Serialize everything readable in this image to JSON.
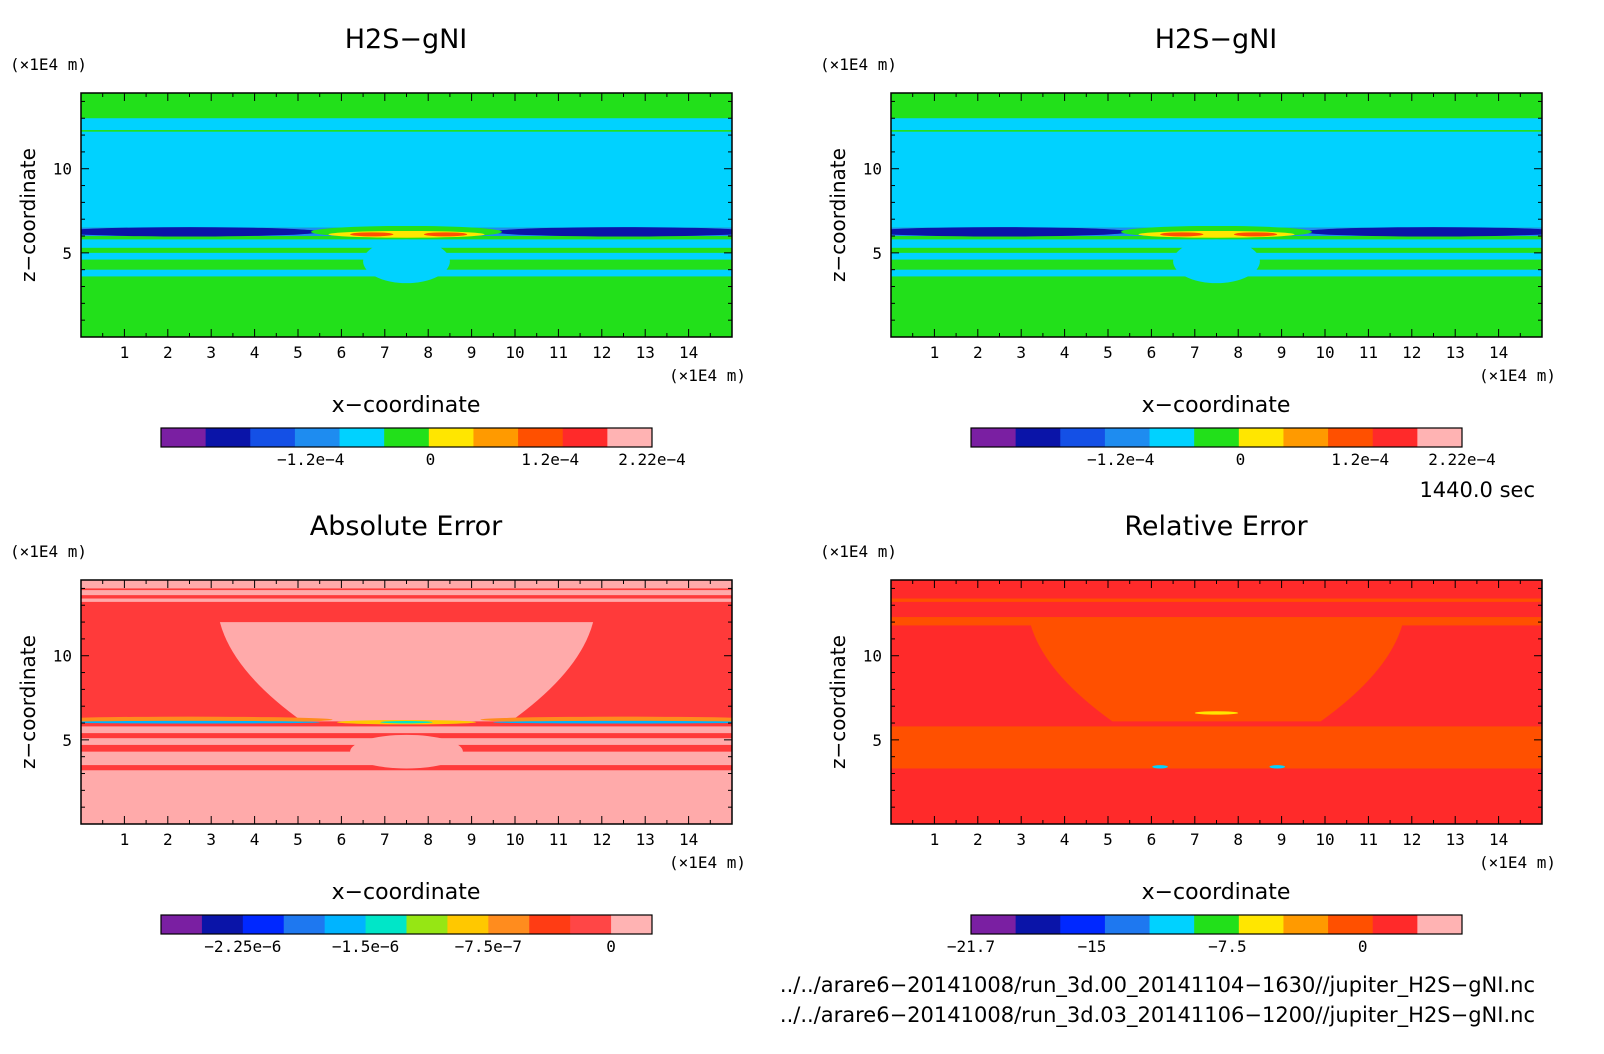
{
  "chart_data": [
    {
      "type": "heatmap",
      "title": "H2S−gNI",
      "xlabel": "x−coordinate",
      "ylabel": "z−coordinate",
      "x_unit": "(×1E4 m)",
      "z_unit": "(×1E4 m)",
      "xlim": [
        0,
        15
      ],
      "zlim": [
        0,
        14.5
      ],
      "x_ticks": [
        "1",
        "2",
        "3",
        "4",
        "5",
        "6",
        "7",
        "8",
        "9",
        "10",
        "11",
        "12",
        "13",
        "14"
      ],
      "z_ticks": [
        "5",
        "10"
      ],
      "colorbar": {
        "colors": [
          "#7a1fa2",
          "#0a14a8",
          "#1450e6",
          "#1e8cf0",
          "#00d2ff",
          "#22e01a",
          "#ffe600",
          "#ff9a00",
          "#ff5000",
          "#ff2a2a",
          "#ffb3b3"
        ],
        "tick_labels": [
          "−1.2e−4",
          "0",
          "1.2e−4",
          "2.22e−4"
        ],
        "tick_values": [
          -0.00012,
          0,
          0.00012,
          0.000222
        ],
        "min": -0.00027,
        "max": 0.000222
      },
      "field": {
        "background": "#22e01a",
        "bands": [
          {
            "z0": 12.3,
            "z1": 13.0,
            "color": "#00d2ff"
          },
          {
            "z0": 6.5,
            "z1": 12.2,
            "color": "#00d2ff"
          },
          {
            "z0": 6.0,
            "z1": 6.5,
            "color": "#1e8cf0"
          },
          {
            "z0": 5.3,
            "z1": 5.8,
            "color": "#00d2ff"
          },
          {
            "z0": 4.6,
            "z1": 5.0,
            "color": "#00d2ff"
          },
          {
            "z0": 3.6,
            "z1": 4.0,
            "color": "#00d2ff"
          }
        ],
        "blobs": [
          {
            "cx": 2.5,
            "cz": 6.25,
            "rx": 3.0,
            "rz": 0.28,
            "color": "#0a14a8"
          },
          {
            "cx": 12.5,
            "cz": 6.25,
            "rx": 3.0,
            "rz": 0.28,
            "color": "#0a14a8"
          },
          {
            "cx": 7.5,
            "cz": 6.25,
            "rx": 2.2,
            "rz": 0.35,
            "color": "#22e01a"
          },
          {
            "cx": 7.5,
            "cz": 6.1,
            "rx": 1.8,
            "rz": 0.2,
            "color": "#ffe600"
          },
          {
            "cx": 6.7,
            "cz": 6.1,
            "rx": 0.5,
            "rz": 0.12,
            "color": "#ff5000"
          },
          {
            "cx": 8.4,
            "cz": 6.1,
            "rx": 0.5,
            "rz": 0.12,
            "color": "#ff5000"
          },
          {
            "cx": 7.5,
            "cz": 4.5,
            "rx": 1.0,
            "rz": 1.3,
            "color": "#00d2ff"
          }
        ]
      }
    },
    {
      "type": "heatmap",
      "title": "H2S−gNI",
      "xlabel": "x−coordinate",
      "ylabel": "z−coordinate",
      "x_unit": "(×1E4 m)",
      "z_unit": "(×1E4 m)",
      "xlim": [
        0,
        15
      ],
      "zlim": [
        0,
        14.5
      ],
      "x_ticks": [
        "1",
        "2",
        "3",
        "4",
        "5",
        "6",
        "7",
        "8",
        "9",
        "10",
        "11",
        "12",
        "13",
        "14"
      ],
      "z_ticks": [
        "5",
        "10"
      ],
      "colorbar": {
        "colors": [
          "#7a1fa2",
          "#0a14a8",
          "#1450e6",
          "#1e8cf0",
          "#00d2ff",
          "#22e01a",
          "#ffe600",
          "#ff9a00",
          "#ff5000",
          "#ff2a2a",
          "#ffb3b3"
        ],
        "tick_labels": [
          "−1.2e−4",
          "0",
          "1.2e−4",
          "2.22e−4"
        ],
        "tick_values": [
          -0.00012,
          0,
          0.00012,
          0.000222
        ],
        "min": -0.00027,
        "max": 0.000222
      },
      "field": {
        "background": "#22e01a",
        "bands": [
          {
            "z0": 12.3,
            "z1": 13.0,
            "color": "#00d2ff"
          },
          {
            "z0": 6.5,
            "z1": 12.2,
            "color": "#00d2ff"
          },
          {
            "z0": 6.0,
            "z1": 6.5,
            "color": "#1e8cf0"
          },
          {
            "z0": 5.3,
            "z1": 5.8,
            "color": "#00d2ff"
          },
          {
            "z0": 4.6,
            "z1": 5.0,
            "color": "#00d2ff"
          },
          {
            "z0": 3.6,
            "z1": 4.0,
            "color": "#00d2ff"
          }
        ],
        "blobs": [
          {
            "cx": 2.5,
            "cz": 6.25,
            "rx": 3.0,
            "rz": 0.28,
            "color": "#0a14a8"
          },
          {
            "cx": 12.5,
            "cz": 6.25,
            "rx": 3.0,
            "rz": 0.28,
            "color": "#0a14a8"
          },
          {
            "cx": 7.5,
            "cz": 6.25,
            "rx": 2.2,
            "rz": 0.35,
            "color": "#22e01a"
          },
          {
            "cx": 7.5,
            "cz": 6.1,
            "rx": 1.8,
            "rz": 0.2,
            "color": "#ffe600"
          },
          {
            "cx": 6.7,
            "cz": 6.1,
            "rx": 0.5,
            "rz": 0.12,
            "color": "#ff5000"
          },
          {
            "cx": 8.4,
            "cz": 6.1,
            "rx": 0.5,
            "rz": 0.12,
            "color": "#ff5000"
          },
          {
            "cx": 7.5,
            "cz": 4.5,
            "rx": 1.0,
            "rz": 1.3,
            "color": "#00d2ff"
          }
        ]
      }
    },
    {
      "type": "heatmap",
      "title": "Absolute Error",
      "xlabel": "x−coordinate",
      "ylabel": "z−coordinate",
      "x_unit": "(×1E4 m)",
      "z_unit": "(×1E4 m)",
      "xlim": [
        0,
        15
      ],
      "zlim": [
        0,
        14.5
      ],
      "x_ticks": [
        "1",
        "2",
        "3",
        "4",
        "5",
        "6",
        "7",
        "8",
        "9",
        "10",
        "11",
        "12",
        "13",
        "14"
      ],
      "z_ticks": [
        "5",
        "10"
      ],
      "colorbar": {
        "colors": [
          "#7a1fa2",
          "#0a14a8",
          "#0028ff",
          "#1e78f0",
          "#00b4ff",
          "#00e6c8",
          "#96e614",
          "#ffc800",
          "#ff8c1e",
          "#ff3c14",
          "#ff4646",
          "#ffb3b3"
        ],
        "tick_labels": [
          "−2.25e−6",
          "−1.5e−6",
          "−7.5e−7",
          "0"
        ],
        "tick_values": [
          -2.25e-06,
          -1.5e-06,
          -7.5e-07,
          0
        ],
        "min": -2.75e-06,
        "max": 2.5e-07
      },
      "field": {
        "background": "#ff3a3a",
        "bands": [
          {
            "z0": 0,
            "z1": 3.2,
            "color": "#ffaaaa"
          },
          {
            "z0": 3.2,
            "z1": 3.5,
            "color": "#ff3a3a"
          },
          {
            "z0": 3.5,
            "z1": 4.3,
            "color": "#ffaaaa"
          },
          {
            "z0": 4.7,
            "z1": 5.1,
            "color": "#ffaaaa"
          },
          {
            "z0": 5.4,
            "z1": 5.8,
            "color": "#ffaaaa"
          },
          {
            "z0": 13.2,
            "z1": 14.5,
            "color": "#ffaaaa"
          },
          {
            "z0": 13.4,
            "z1": 13.6,
            "color": "#ff3a3a"
          },
          {
            "z0": 13.9,
            "z1": 14.0,
            "color": "#ff3a3a"
          }
        ],
        "basin": {
          "top_z": 12.0,
          "bottom_z": 6.1,
          "top_x0": 3.2,
          "top_x1": 11.8,
          "bottom_x0": 5.1,
          "bottom_x1": 9.9,
          "color": "#ffaaaa"
        },
        "blobs": [
          {
            "cx": 2.5,
            "cz": 6.2,
            "rx": 3.3,
            "rz": 0.18,
            "color": "#ff8c1e"
          },
          {
            "cx": 2.5,
            "cz": 6.05,
            "rx": 3.0,
            "rz": 0.08,
            "color": "#00b4ff"
          },
          {
            "cx": 12.5,
            "cz": 6.2,
            "rx": 3.3,
            "rz": 0.18,
            "color": "#ff8c1e"
          },
          {
            "cx": 12.5,
            "cz": 6.05,
            "rx": 3.0,
            "rz": 0.08,
            "color": "#00b4ff"
          },
          {
            "cx": 7.5,
            "cz": 6.05,
            "rx": 1.6,
            "rz": 0.13,
            "color": "#ffc800"
          },
          {
            "cx": 7.5,
            "cz": 6.05,
            "rx": 0.6,
            "rz": 0.07,
            "color": "#00e6c8"
          },
          {
            "cx": 7.5,
            "cz": 4.3,
            "rx": 1.3,
            "rz": 1.0,
            "color": "#ffaaaa"
          }
        ]
      }
    },
    {
      "type": "heatmap",
      "title": "Relative Error",
      "xlabel": "x−coordinate",
      "ylabel": "z−coordinate",
      "x_unit": "(×1E4 m)",
      "z_unit": "(×1E4 m)",
      "xlim": [
        0,
        15
      ],
      "zlim": [
        0,
        14.5
      ],
      "x_ticks": [
        "1",
        "2",
        "3",
        "4",
        "5",
        "6",
        "7",
        "8",
        "9",
        "10",
        "11",
        "12",
        "13",
        "14"
      ],
      "z_ticks": [
        "5",
        "10"
      ],
      "colorbar": {
        "colors": [
          "#7a1fa2",
          "#0a14a8",
          "#0028ff",
          "#1e78f0",
          "#00d2ff",
          "#22e01a",
          "#ffe600",
          "#ff9a00",
          "#ff5000",
          "#ff2a2a",
          "#ffb3b3"
        ],
        "tick_labels": [
          "−21.7",
          "−15",
          "−7.5",
          "0"
        ],
        "tick_values": [
          -21.7,
          -15,
          -7.5,
          0
        ],
        "min": -21.7,
        "max": 5.5
      },
      "field": {
        "background": "#ff2a2a",
        "bands": [
          {
            "z0": 3.3,
            "z1": 5.8,
            "color": "#ff5000"
          },
          {
            "z0": 11.8,
            "z1": 12.3,
            "color": "#ff5000"
          },
          {
            "z0": 13.2,
            "z1": 13.4,
            "color": "#ff5000"
          }
        ],
        "basin": {
          "top_z": 12.0,
          "bottom_z": 6.1,
          "top_x0": 3.2,
          "top_x1": 11.8,
          "bottom_x0": 5.1,
          "bottom_x1": 9.9,
          "color": "#ff5000"
        },
        "blobs": [
          {
            "cx": 7.5,
            "cz": 6.6,
            "rx": 0.5,
            "rz": 0.1,
            "color": "#ffe600"
          },
          {
            "cx": 6.2,
            "cz": 3.4,
            "rx": 0.18,
            "rz": 0.1,
            "color": "#00d2ff"
          },
          {
            "cx": 8.9,
            "cz": 3.4,
            "rx": 0.18,
            "rz": 0.1,
            "color": "#00d2ff"
          }
        ]
      }
    }
  ],
  "annotations": {
    "time": "1440.0 sec",
    "file1": "../../arare6−20141008/run_3d.00_20141104−1630//jupiter_H2S−gNI.nc",
    "file2": "../../arare6−20141008/run_3d.03_20141106−1200//jupiter_H2S−gNI.nc"
  }
}
